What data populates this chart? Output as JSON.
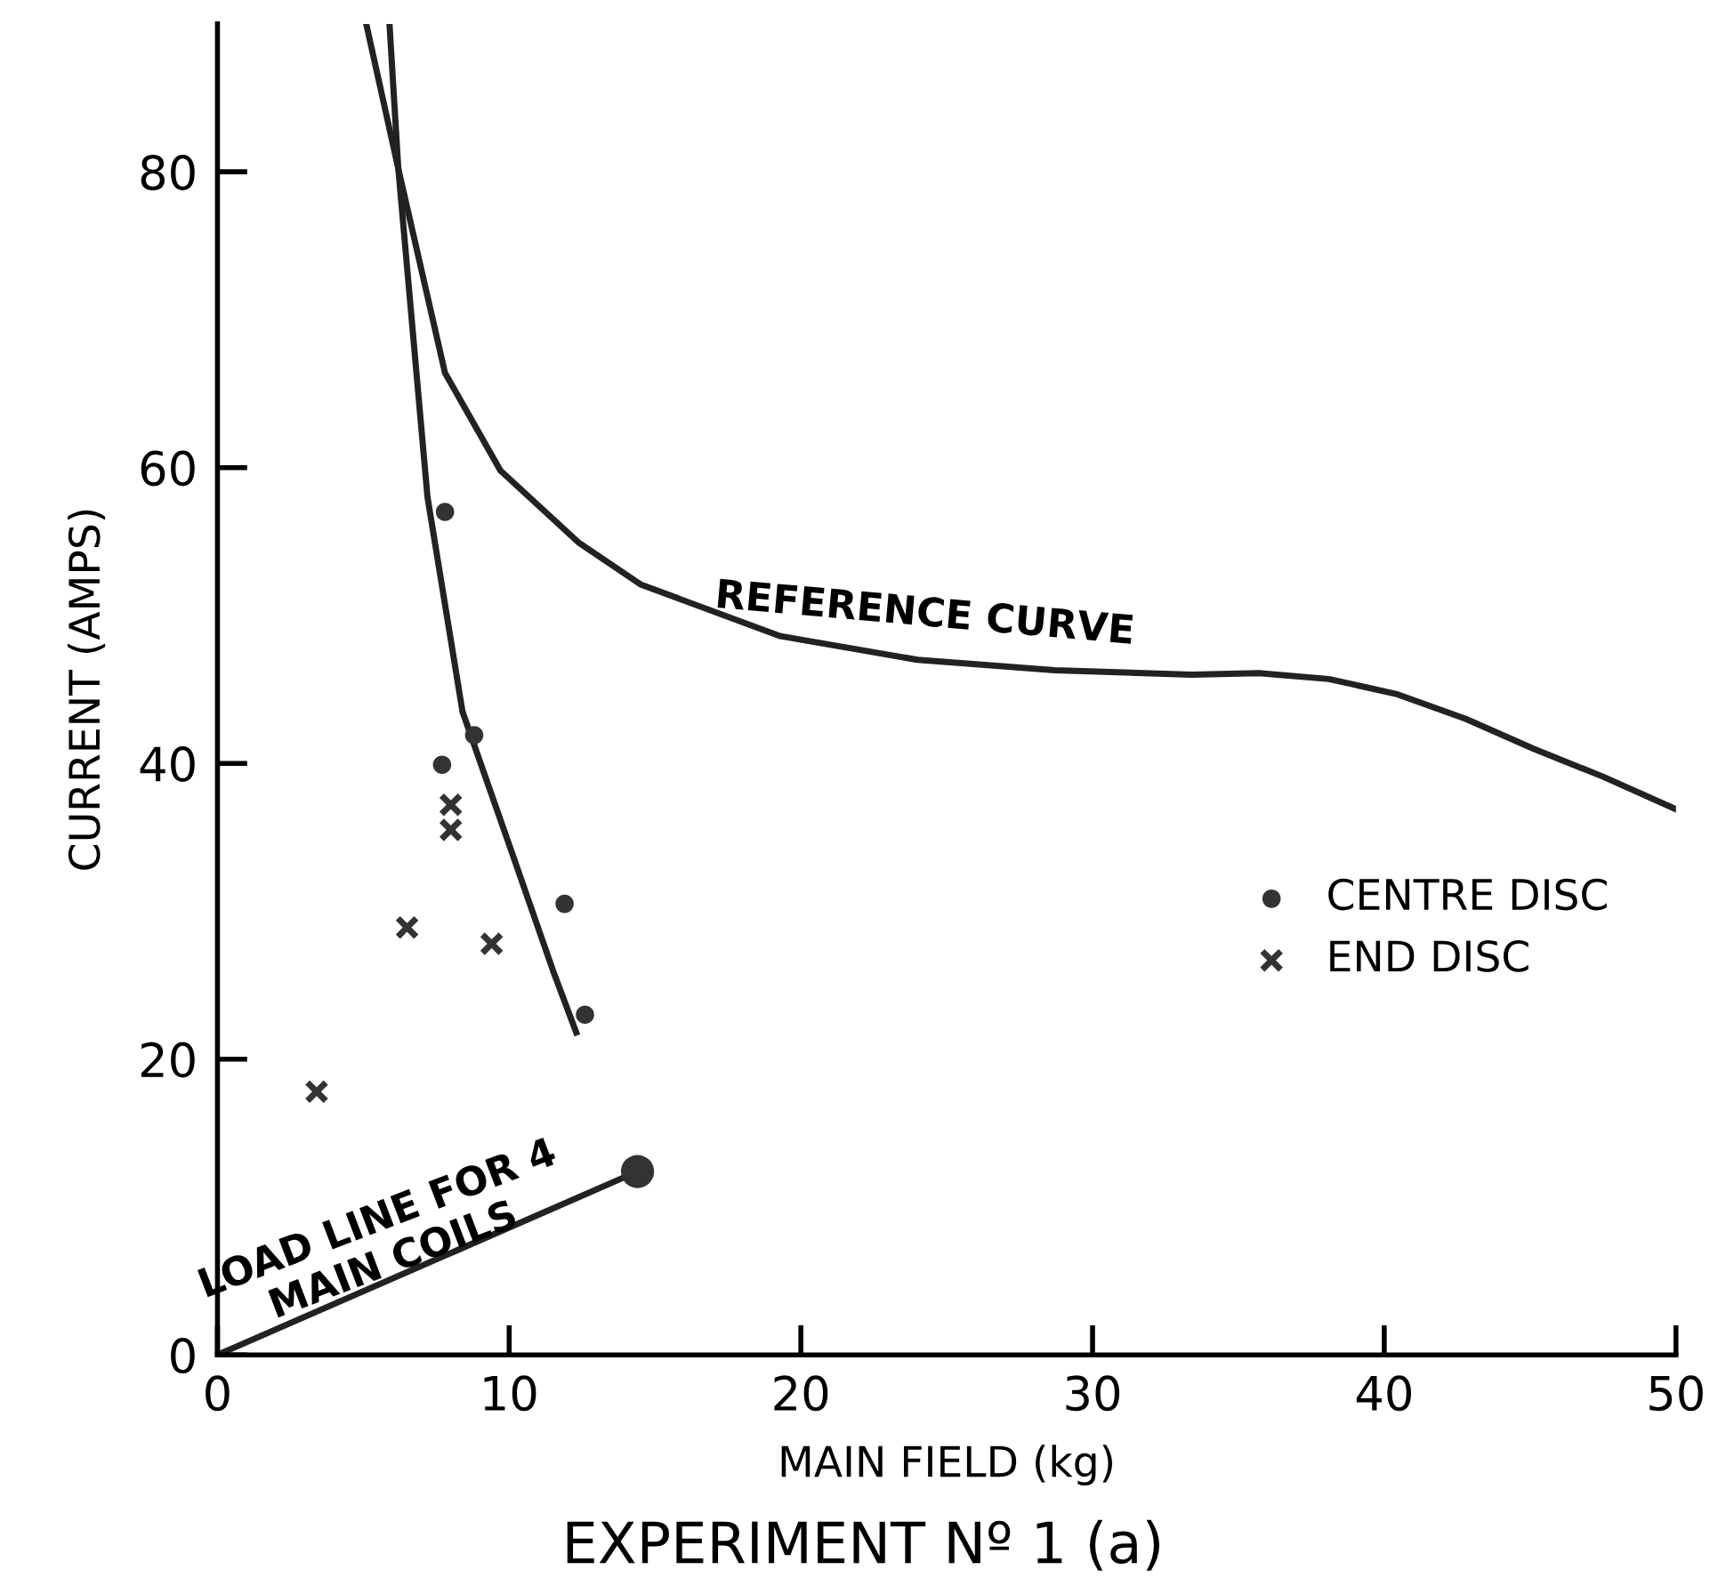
{
  "chart_data": {
    "type": "scatter",
    "title": "EXPERIMENT Nº 1 (a)",
    "xlabel": "MAIN FIELD (kg)",
    "ylabel": "CURRENT (AMPS)",
    "xlim": [
      0,
      50
    ],
    "ylim": [
      0,
      90
    ],
    "xticks": [
      0,
      10,
      20,
      30,
      40,
      50
    ],
    "yticks": [
      0,
      20,
      40,
      60,
      80
    ],
    "grid": false,
    "legend": "right",
    "series": [
      {
        "name": "CENTRE DISC",
        "marker": "circle",
        "color": "#333333",
        "x": [
          7.8,
          7.7,
          8.8,
          11.9,
          12.6
        ],
        "values": [
          57.0,
          39.9,
          41.9,
          30.5,
          23.0
        ]
      },
      {
        "name": "END DISC",
        "marker": "cross",
        "color": "#333333",
        "x": [
          3.4,
          6.5,
          8.0,
          8.0,
          9.4
        ],
        "values": [
          17.8,
          28.9,
          37.2,
          35.5,
          27.8
        ]
      },
      {
        "type": "line",
        "marker": "none",
        "color": "#222222",
        "x": [
          5.9,
          6.2,
          7.2,
          8.4,
          10.0,
          11.5,
          12.3
        ],
        "values": [
          89.9,
          80.2,
          58,
          43.5,
          34.5,
          26,
          21.8
        ]
      },
      {
        "type": "line",
        "marker": "none",
        "color": "#222222",
        "x": [
          5.1,
          6.2,
          7.8,
          9.7,
          12.4,
          14.5,
          19.3,
          24.0,
          28.7,
          33.4,
          35.7,
          38.1,
          40.4,
          42.8,
          45.1,
          47.5,
          50
        ],
        "values": [
          90,
          80.2,
          66.4,
          59.8,
          54.9,
          52.1,
          48.6,
          47.0,
          46.3,
          46.0,
          46.1,
          45.7,
          44.7,
          43.0,
          41.0,
          39.1,
          36.9
        ]
      },
      {
        "type": "line",
        "marker": "none",
        "color": "#222222",
        "x": [
          0,
          14.4
        ],
        "values": [
          0,
          12.4
        ]
      },
      {
        "marker": "circle",
        "color": "#333333",
        "x": [
          14.4
        ],
        "values": [
          12.4
        ]
      }
    ],
    "annotations": [
      {
        "text": "REFERENCE CURVE",
        "x": 17,
        "y": 50
      },
      {
        "text": "LOAD LINE FOR 4\nMAIN COILS",
        "x": 0.2,
        "y": 0.5
      }
    ]
  }
}
